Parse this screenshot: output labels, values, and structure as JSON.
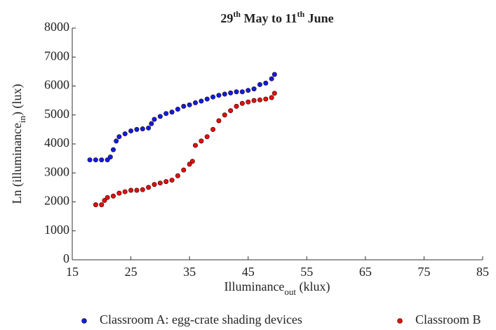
{
  "chart_data": {
    "type": "scatter",
    "title_parts": [
      "29",
      "th",
      " May to 11",
      "th",
      " June"
    ],
    "ylabel_parts": [
      "Ln (illuminance",
      "in",
      ") (lux)"
    ],
    "xlabel_parts": [
      "Illuminance",
      "out",
      " (klux)"
    ],
    "xlim": [
      15,
      85
    ],
    "xticks": [
      15,
      25,
      35,
      45,
      55,
      65,
      75,
      85
    ],
    "ylim": [
      0,
      8000
    ],
    "yticks": [
      0,
      1000,
      2000,
      3000,
      4000,
      5000,
      6000,
      7000,
      8000
    ],
    "series": [
      {
        "name": "Classroom A: egg-crate shading devices",
        "color": "#0a1ee6",
        "x": [
          18,
          19,
          20,
          21,
          21.5,
          22,
          22.5,
          23,
          24,
          25,
          26,
          27,
          28,
          28.5,
          29,
          30,
          31,
          32,
          33,
          34,
          35,
          36,
          37,
          38,
          39,
          40,
          41,
          42,
          43,
          44,
          45,
          46,
          47,
          48,
          49,
          49.5
        ],
        "values": [
          3450,
          3450,
          3450,
          3450,
          3550,
          3800,
          4100,
          4250,
          4350,
          4450,
          4500,
          4520,
          4550,
          4700,
          4850,
          4950,
          5050,
          5100,
          5200,
          5300,
          5350,
          5420,
          5480,
          5550,
          5620,
          5680,
          5720,
          5760,
          5800,
          5800,
          5850,
          5900,
          6050,
          6100,
          6250,
          6400
        ]
      },
      {
        "name": "Classroom B",
        "color": "#e01010",
        "x": [
          19,
          20,
          20.5,
          21,
          22,
          23,
          24,
          25,
          26,
          27,
          28,
          29,
          30,
          31,
          32,
          33,
          34,
          35,
          35.5,
          36,
          37,
          38,
          39,
          40,
          41,
          42,
          43,
          44,
          45,
          46,
          47,
          48,
          49,
          49.5
        ],
        "values": [
          1900,
          1900,
          2050,
          2150,
          2200,
          2300,
          2350,
          2400,
          2400,
          2420,
          2500,
          2600,
          2650,
          2700,
          2750,
          2900,
          3100,
          3300,
          3400,
          3950,
          4100,
          4250,
          4500,
          4800,
          5000,
          5150,
          5300,
          5400,
          5450,
          5500,
          5520,
          5550,
          5600,
          5750
        ]
      }
    ]
  }
}
